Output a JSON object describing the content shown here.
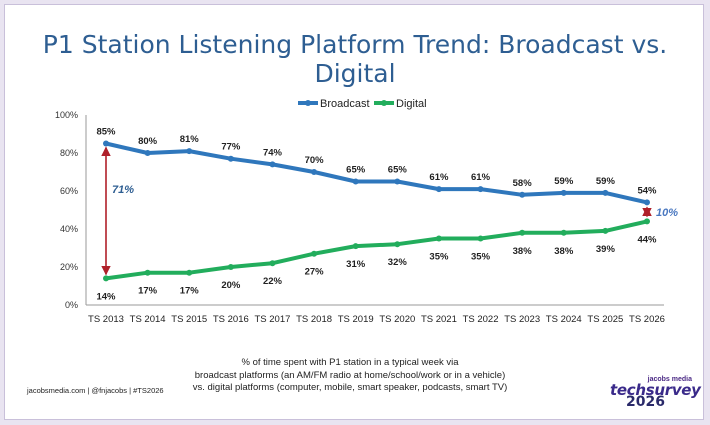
{
  "title": "P1 Station Listening Platform Trend: Broadcast vs. Digital",
  "chart_data": {
    "type": "line",
    "title": "P1 Station Listening Platform Trend: Broadcast vs. Digital",
    "categories": [
      "TS 2013",
      "TS 2014",
      "TS 2015",
      "TS 2016",
      "TS 2017",
      "TS 2018",
      "TS 2019",
      "TS 2020",
      "TS 2021",
      "TS 2022",
      "TS 2023",
      "TS 2024",
      "TS 2025",
      "TS 2026"
    ],
    "ylim": [
      0,
      100
    ],
    "yticks": [
      0,
      20,
      40,
      60,
      80,
      100
    ],
    "ytick_labels": [
      "0%",
      "20%",
      "40%",
      "60%",
      "80%",
      "100%"
    ],
    "grid": false,
    "legend_position": "top-center",
    "series": [
      {
        "name": "Broadcast",
        "color": "#2f77bc",
        "values": [
          85,
          80,
          81,
          77,
          74,
          70,
          65,
          65,
          61,
          61,
          58,
          59,
          59,
          54
        ],
        "labels": [
          "85%",
          "80%",
          "81%",
          "77%",
          "74%",
          "70%",
          "65%",
          "65%",
          "61%",
          "61%",
          "58%",
          "59%",
          "59%",
          "54%"
        ]
      },
      {
        "name": "Digital",
        "color": "#22ad5c",
        "values": [
          14,
          17,
          17,
          20,
          22,
          27,
          31,
          32,
          35,
          35,
          38,
          38,
          39,
          44
        ],
        "labels": [
          "14%",
          "17%",
          "17%",
          "20%",
          "22%",
          "27%",
          "31%",
          "32%",
          "35%",
          "35%",
          "38%",
          "38%",
          "39%",
          "44%"
        ]
      }
    ],
    "annotations": [
      {
        "text": "71%",
        "category": "TS 2013",
        "color": "#2e5e92",
        "arrow_color": "#b0202a"
      },
      {
        "text": "10%",
        "category": "TS 2026",
        "color": "#4a78c0",
        "arrow_color": "#b0202a"
      }
    ]
  },
  "caption": {
    "line1": "% of time spent with P1 station in a typical week via",
    "line2": "broadcast platforms (an AM/FM radio at home/school/work or in a vehicle)",
    "line3": "vs. digital platforms (computer, mobile, smart speaker, podcasts, smart TV)"
  },
  "footer": {
    "text": "jacobsmedia.com   |   @fnjacobs   |   #TS2026"
  },
  "logo": {
    "brand": "jacobs media",
    "name": "techsurvey",
    "year": "2026"
  }
}
